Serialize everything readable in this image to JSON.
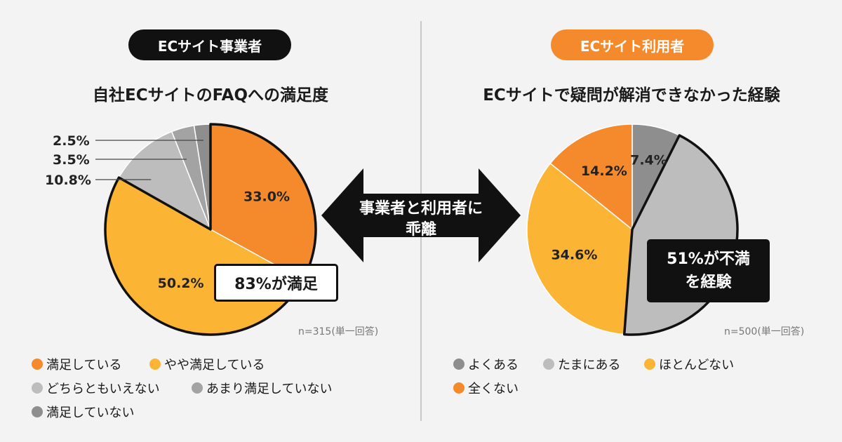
{
  "colors": {
    "dark_orange": "#f58a2c",
    "yellow": "#fbb434",
    "light_gray": "#bdbdbd",
    "mid_gray": "#a3a3a3",
    "dark_gray": "#8e8e8e"
  },
  "left": {
    "badge": "ECサイト事業者",
    "note": "n=315(単一回答)",
    "callout": "83%が満足"
  },
  "right": {
    "badge": "ECサイト利用者",
    "note": "n=500(単一回答)",
    "callout": "51%が不満\nを経験"
  },
  "center": {
    "arrow_text": "事業者と利用者に\n乖離"
  },
  "chart_data": [
    {
      "type": "pie",
      "title": "自社ECサイトのFAQへの満足度",
      "slices": [
        {
          "label": "満足している",
          "value": 33.0,
          "display": "33.0%",
          "color": "#f58a2c"
        },
        {
          "label": "やや満足している",
          "value": 50.2,
          "display": "50.2%",
          "color": "#fbb434"
        },
        {
          "label": "どちらともいえない",
          "value": 10.8,
          "display": "10.8%",
          "color": "#bdbdbd"
        },
        {
          "label": "あまり満足していない",
          "value": 3.5,
          "display": "3.5%",
          "color": "#a3a3a3"
        },
        {
          "label": "満足していない",
          "value": 2.5,
          "display": "2.5%",
          "color": "#8e8e8e"
        }
      ],
      "legend": [
        "満足している",
        "やや満足している",
        "どちらともいえない",
        "あまり満足していない",
        "満足していない"
      ],
      "legend_placement": "bottom"
    },
    {
      "type": "pie",
      "title": "ECサイトで疑問が解消できなかった経験",
      "slices": [
        {
          "label": "よくある",
          "value": 7.4,
          "display": "7.4%",
          "color": "#8e8e8e"
        },
        {
          "label": "たまにある",
          "value": 43.8,
          "display": "43.8%",
          "color": "#bdbdbd"
        },
        {
          "label": "ほとんどない",
          "value": 34.6,
          "display": "34.6%",
          "color": "#fbb434"
        },
        {
          "label": "全くない",
          "value": 14.2,
          "display": "14.2%",
          "color": "#f58a2c"
        }
      ],
      "legend": [
        "よくある",
        "たまにある",
        "ほとんどない",
        "全くない"
      ],
      "legend_placement": "bottom"
    }
  ]
}
